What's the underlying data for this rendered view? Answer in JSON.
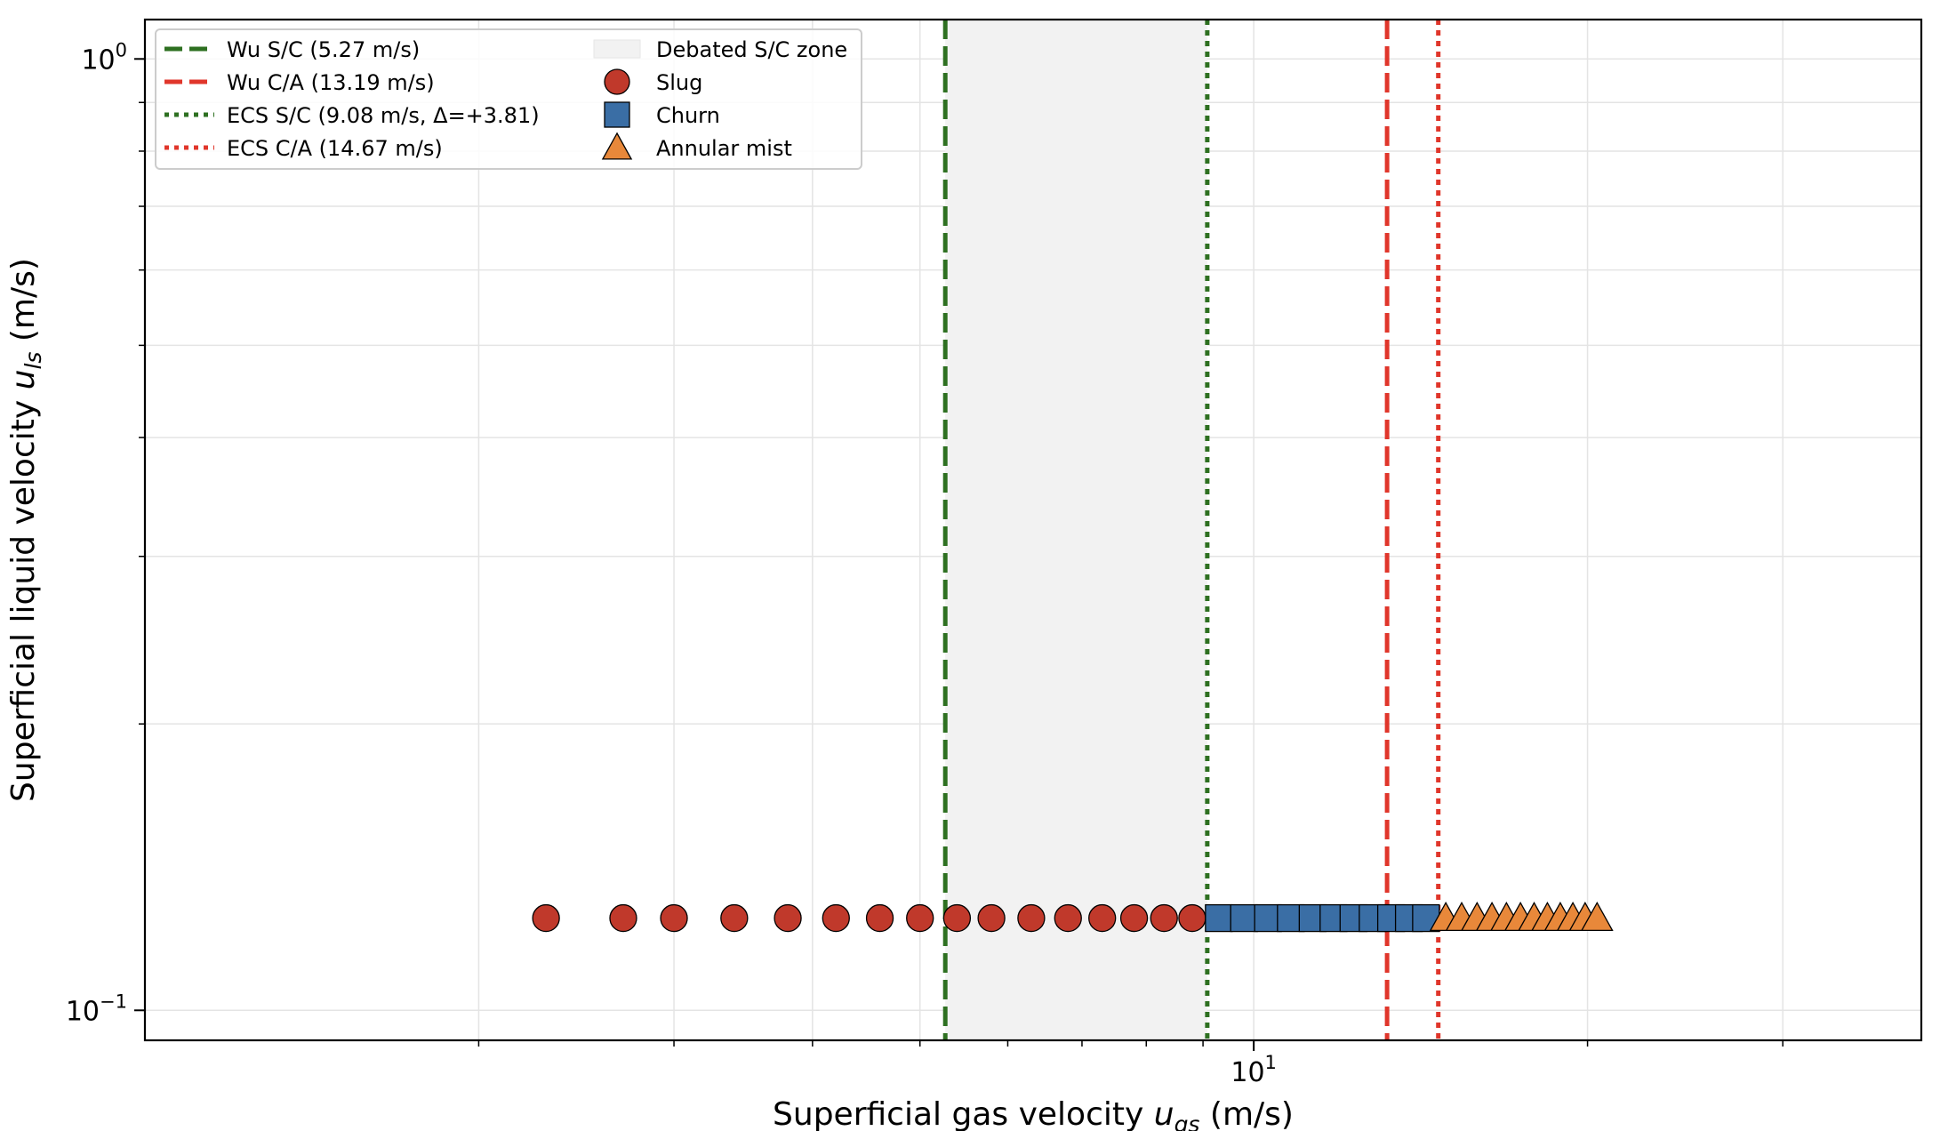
{
  "chart_data": {
    "type": "scatter",
    "title": "",
    "xlabel_main": "Superficial gas velocity ",
    "xlabel_var": "u",
    "xlabel_sub": "gs",
    "xlabel_unit": " (m/s)",
    "ylabel_main": "Superficial liquid velocity ",
    "ylabel_var": "u",
    "ylabel_sub": "ls",
    "ylabel_unit": " (m/s)",
    "xscale": "log",
    "yscale": "log",
    "xlim": [
      1.0,
      40.0
    ],
    "ylim": [
      0.093,
      1.1
    ],
    "xticks": [
      {
        "base": "10",
        "exp": "1",
        "value": 10
      }
    ],
    "yticks": [
      {
        "base": "10",
        "exp": "0",
        "value": 1.0
      },
      {
        "base": "10",
        "exp": "−1",
        "value": 0.1
      }
    ],
    "grid": true,
    "legend_position": "top-left",
    "shaded_region": {
      "label": "Debated S/C zone",
      "x_start": 5.27,
      "x_end": 9.08,
      "color": "#f2f2f2"
    },
    "vlines": [
      {
        "label": "Wu S/C (5.27 m/s)",
        "x": 5.27,
        "style": "dashed",
        "color": "#2e7021"
      },
      {
        "label": "Wu C/A (13.19 m/s)",
        "x": 13.19,
        "style": "dashed",
        "color": "#e0362b"
      },
      {
        "label": "ECS S/C (9.08 m/s, Δ=+3.81)",
        "x": 9.08,
        "style": "dotted",
        "color": "#2e7021"
      },
      {
        "label": "ECS C/A (14.67 m/s)",
        "x": 14.67,
        "style": "dotted",
        "color": "#e0362b"
      }
    ],
    "series": [
      {
        "name": "Slug",
        "marker": "circle",
        "color": "#c0392b",
        "y": 0.125,
        "x": [
          2.3,
          2.7,
          3.0,
          3.4,
          3.8,
          4.2,
          4.6,
          5.0,
          5.4,
          5.8,
          6.3,
          6.8,
          7.3,
          7.8,
          8.3,
          8.8
        ]
      },
      {
        "name": "Churn",
        "marker": "square",
        "color": "#3a6ea5",
        "y": 0.125,
        "x": [
          9.3,
          9.8,
          10.3,
          10.8,
          11.3,
          11.8,
          12.3,
          12.8,
          13.3,
          13.8,
          14.3
        ]
      },
      {
        "name": "Annular mist",
        "marker": "triangle",
        "color": "#e8883a",
        "y": 0.125,
        "x": [
          14.9,
          15.4,
          15.9,
          16.4,
          16.9,
          17.4,
          17.9,
          18.4,
          18.9,
          19.4,
          19.9,
          20.4
        ]
      }
    ]
  }
}
